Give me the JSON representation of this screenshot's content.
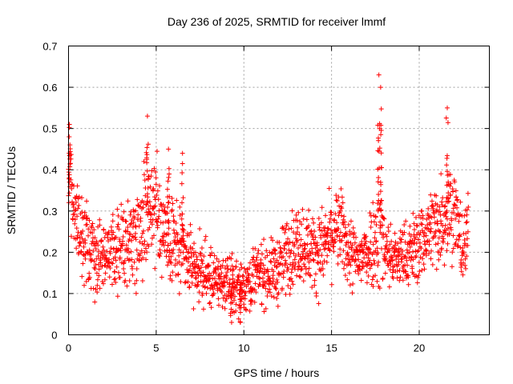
{
  "chart_data": {
    "type": "scatter",
    "title": "Day 236 of 2025, SRMTID for receiver lmmf",
    "xlabel": "GPS time / hours",
    "ylabel": "SRMTID / TECUs",
    "xlim": [
      0,
      24
    ],
    "ylim": [
      0,
      0.7
    ],
    "x_ticks": [
      0,
      5,
      10,
      15,
      20
    ],
    "x_tick_labels": [
      "0",
      "5",
      "10",
      "15",
      "20"
    ],
    "y_ticks": [
      0,
      0.1,
      0.2,
      0.3,
      0.4,
      0.5,
      0.6,
      0.7
    ],
    "y_tick_labels": [
      "0",
      "0.1",
      "0.2",
      "0.3",
      "0.4",
      "0.5",
      "0.6",
      "0.7"
    ],
    "grid": true,
    "marker": "+",
    "color": "#ff0000",
    "series": [
      {
        "name": "SRMTID",
        "profile_hours": [
          0,
          0.1,
          0.3,
          0.6,
          1.0,
          1.5,
          2.0,
          2.5,
          3.0,
          3.5,
          4.0,
          4.4,
          4.6,
          5.0,
          5.5,
          6.0,
          6.5,
          7.0,
          7.5,
          8.0,
          8.5,
          9.0,
          9.5,
          10.0,
          10.5,
          11.0,
          11.5,
          12.0,
          12.5,
          13.0,
          13.5,
          14.0,
          14.5,
          15.0,
          15.5,
          16.0,
          16.5,
          17.0,
          17.5,
          17.7,
          18.0,
          18.5,
          19.0,
          19.5,
          20.0,
          20.5,
          21.0,
          21.5,
          21.8,
          22.0,
          22.5,
          22.8
        ],
        "profile_median": [
          0.38,
          0.36,
          0.3,
          0.26,
          0.22,
          0.2,
          0.21,
          0.19,
          0.21,
          0.23,
          0.26,
          0.3,
          0.33,
          0.3,
          0.26,
          0.22,
          0.2,
          0.17,
          0.15,
          0.14,
          0.13,
          0.13,
          0.12,
          0.12,
          0.14,
          0.15,
          0.15,
          0.16,
          0.2,
          0.22,
          0.22,
          0.2,
          0.21,
          0.24,
          0.26,
          0.2,
          0.18,
          0.2,
          0.24,
          0.3,
          0.22,
          0.18,
          0.19,
          0.2,
          0.22,
          0.25,
          0.27,
          0.29,
          0.32,
          0.3,
          0.2,
          0.25
        ],
        "profile_spread": [
          0.07,
          0.07,
          0.05,
          0.05,
          0.05,
          0.05,
          0.05,
          0.05,
          0.05,
          0.06,
          0.06,
          0.08,
          0.08,
          0.07,
          0.06,
          0.06,
          0.05,
          0.04,
          0.04,
          0.04,
          0.035,
          0.035,
          0.035,
          0.035,
          0.04,
          0.04,
          0.04,
          0.045,
          0.05,
          0.05,
          0.05,
          0.05,
          0.05,
          0.05,
          0.05,
          0.05,
          0.04,
          0.05,
          0.06,
          0.12,
          0.05,
          0.04,
          0.04,
          0.045,
          0.05,
          0.05,
          0.06,
          0.06,
          0.07,
          0.06,
          0.05,
          0.05
        ],
        "spikes": [
          {
            "hour": 0.05,
            "value": 0.51
          },
          {
            "hour": 4.5,
            "value": 0.53
          },
          {
            "hour": 5.7,
            "value": 0.45
          },
          {
            "hour": 6.5,
            "value": 0.44
          },
          {
            "hour": 17.7,
            "value": 0.63
          },
          {
            "hour": 17.8,
            "value": 0.6
          },
          {
            "hour": 21.6,
            "value": 0.55
          },
          {
            "hour": 9.8,
            "value": 0.03
          },
          {
            "hour": 9.3,
            "value": 0.03
          }
        ],
        "point_count": 1800
      }
    ]
  }
}
